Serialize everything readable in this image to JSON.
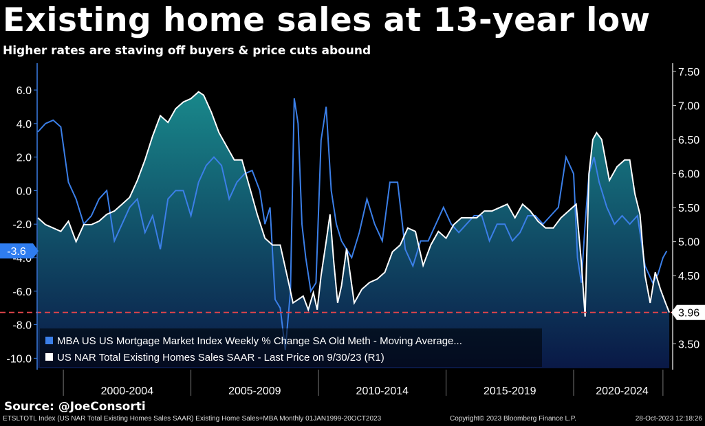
{
  "header": {
    "title": "Existing home sales at 13-year low",
    "subtitle": "Higher rates are staving off buyers & price cuts abound"
  },
  "footer": {
    "source": "Source:  @JoeConsorti",
    "index_line": "ETSLTOTL Index (US NAR Total Existing Homes Sales SAAR) Existing Home Sales+MBA  Monthly 01JAN1999-20OCT2023",
    "copyright": "Copyright© 2023 Bloomberg Finance L.P.",
    "date": "28-Oct-2023 12:18:26"
  },
  "colors": {
    "mba_line": "#3b7fe8",
    "sales_line": "#ffffff",
    "area_top": "#1a8f92",
    "area_bottom": "#0a1a4a",
    "reference_line": "#e0444a",
    "badge_left": "#2f7df0",
    "badge_right": "#ffffff"
  },
  "chart_data": {
    "type": "line",
    "x_range": [
      1999.0,
      2023.8
    ],
    "x_labels": [
      "2000-2004",
      "2005-2009",
      "2010-2014",
      "2015-2019",
      "2020-2024"
    ],
    "left_axis": {
      "ticks": [
        "6.0",
        "4.0",
        "2.0",
        "0.0",
        "-2.0",
        "-4.0",
        "-6.0",
        "-8.0",
        "-10.0"
      ],
      "tick_values": [
        6,
        4,
        2,
        0,
        -2,
        -4,
        -6,
        -8,
        -10
      ],
      "range": [
        -10.6,
        7.6
      ]
    },
    "right_axis": {
      "ticks": [
        "7.50",
        "7.00",
        "6.50",
        "6.00",
        "5.50",
        "5.00",
        "4.50",
        "4.00",
        "3.50"
      ],
      "tick_values": [
        7.5,
        7.0,
        6.5,
        6.0,
        5.5,
        5.0,
        4.5,
        4.0,
        3.5
      ],
      "range": [
        3.14,
        7.62
      ]
    },
    "last_values": {
      "left": "-3.6",
      "right": "3.96"
    },
    "reference_line_value": 3.96,
    "legend": [
      "MBA US US Mortgage Market Index Weekly % Change SA Old Meth - Moving Average...",
      "US NAR Total Existing Homes Sales SAAR - Last Price on 9/30/23 (R1)"
    ],
    "series": [
      {
        "name": "US NAR Total Existing Homes Sales SAAR",
        "axis": "right",
        "x": [
          1999.0,
          1999.3,
          1999.6,
          1999.9,
          2000.2,
          2000.5,
          2000.8,
          2001.1,
          2001.4,
          2001.7,
          2002.0,
          2002.3,
          2002.6,
          2002.9,
          2003.2,
          2003.5,
          2003.8,
          2004.1,
          2004.4,
          2004.7,
          2005.0,
          2005.3,
          2005.5,
          2005.8,
          2006.1,
          2006.4,
          2006.7,
          2007.0,
          2007.3,
          2007.6,
          2007.9,
          2008.2,
          2008.5,
          2008.8,
          2009.0,
          2009.2,
          2009.4,
          2009.6,
          2009.8,
          2009.95,
          2010.1,
          2010.3,
          2010.45,
          2010.6,
          2010.75,
          2010.9,
          2011.1,
          2011.4,
          2011.7,
          2012.0,
          2012.3,
          2012.6,
          2012.9,
          2013.2,
          2013.5,
          2013.8,
          2014.1,
          2014.4,
          2014.7,
          2015.0,
          2015.3,
          2015.6,
          2015.9,
          2016.2,
          2016.5,
          2016.8,
          2017.1,
          2017.4,
          2017.7,
          2018.0,
          2018.3,
          2018.6,
          2018.9,
          2019.2,
          2019.5,
          2019.8,
          2020.1,
          2020.3,
          2020.45,
          2020.6,
          2020.75,
          2020.9,
          2021.1,
          2021.4,
          2021.7,
          2022.0,
          2022.2,
          2022.4,
          2022.6,
          2022.8,
          2023.0,
          2023.2,
          2023.4,
          2023.6,
          2023.75
        ],
        "values": [
          5.35,
          5.25,
          5.2,
          5.15,
          5.3,
          5.0,
          5.25,
          5.25,
          5.3,
          5.4,
          5.45,
          5.55,
          5.65,
          5.9,
          6.2,
          6.55,
          6.85,
          6.75,
          6.95,
          7.05,
          7.1,
          7.2,
          7.15,
          6.9,
          6.6,
          6.4,
          6.2,
          6.2,
          5.8,
          5.4,
          5.05,
          4.95,
          4.95,
          4.45,
          4.1,
          4.15,
          4.2,
          4.0,
          4.25,
          4.0,
          4.5,
          5.0,
          5.4,
          4.7,
          4.1,
          4.35,
          4.9,
          4.1,
          4.3,
          4.4,
          4.45,
          4.55,
          4.85,
          4.95,
          5.2,
          5.15,
          4.65,
          4.95,
          5.15,
          5.05,
          5.25,
          5.35,
          5.35,
          5.35,
          5.45,
          5.45,
          5.5,
          5.55,
          5.35,
          5.55,
          5.45,
          5.3,
          5.2,
          5.2,
          5.35,
          5.45,
          5.55,
          4.7,
          3.9,
          6.0,
          6.5,
          6.6,
          6.5,
          5.9,
          6.1,
          6.2,
          6.2,
          5.7,
          5.4,
          4.5,
          4.1,
          4.55,
          4.3,
          4.1,
          3.96
        ]
      },
      {
        "name": "MBA US US Mortgage Market Index Weekly % Change SA Old Meth - Moving Average",
        "axis": "left",
        "x": [
          1999.0,
          1999.3,
          1999.6,
          1999.9,
          2000.2,
          2000.5,
          2000.8,
          2001.1,
          2001.4,
          2001.7,
          2002.0,
          2002.3,
          2002.6,
          2002.9,
          2003.2,
          2003.5,
          2003.8,
          2004.1,
          2004.4,
          2004.7,
          2005.0,
          2005.3,
          2005.6,
          2005.9,
          2006.2,
          2006.5,
          2006.8,
          2007.1,
          2007.4,
          2007.7,
          2007.9,
          2008.1,
          2008.3,
          2008.5,
          2008.7,
          2008.9,
          2009.05,
          2009.2,
          2009.35,
          2009.5,
          2009.7,
          2009.9,
          2010.1,
          2010.3,
          2010.5,
          2010.7,
          2010.9,
          2011.1,
          2011.3,
          2011.6,
          2011.9,
          2012.2,
          2012.5,
          2012.8,
          2013.1,
          2013.4,
          2013.7,
          2014.0,
          2014.3,
          2014.6,
          2014.9,
          2015.2,
          2015.5,
          2015.8,
          2016.1,
          2016.4,
          2016.7,
          2017.0,
          2017.3,
          2017.6,
          2017.9,
          2018.2,
          2018.5,
          2018.8,
          2019.1,
          2019.4,
          2019.7,
          2020.0,
          2020.15,
          2020.3,
          2020.45,
          2020.6,
          2020.8,
          2021.0,
          2021.3,
          2021.6,
          2021.9,
          2022.2,
          2022.5,
          2022.8,
          2023.1,
          2023.3,
          2023.5,
          2023.65
        ],
        "values": [
          3.5,
          4.0,
          4.2,
          3.8,
          0.5,
          -0.5,
          -2.0,
          -1.5,
          -0.5,
          0.0,
          -3.0,
          -2.0,
          -1.0,
          -0.5,
          -2.5,
          -1.5,
          -3.5,
          -0.5,
          0.0,
          0.0,
          -1.5,
          0.5,
          1.5,
          2.0,
          1.5,
          -0.5,
          0.5,
          1.0,
          1.2,
          0.0,
          -2.0,
          -1.0,
          -6.5,
          -7.0,
          -9.5,
          -6.0,
          5.5,
          4.0,
          -2.0,
          -4.0,
          -6.0,
          -5.5,
          3.0,
          5.0,
          0.0,
          -2.0,
          -3.0,
          -3.5,
          -4.0,
          -2.5,
          -0.5,
          -2.0,
          -3.0,
          0.5,
          0.5,
          -3.5,
          -4.5,
          -3.0,
          -3.0,
          -2.0,
          -1.0,
          -2.0,
          -2.5,
          -2.0,
          -1.5,
          -1.5,
          -3.0,
          -2.0,
          -2.0,
          -3.0,
          -2.5,
          -1.5,
          -1.5,
          -2.0,
          -1.5,
          -1.0,
          2.0,
          1.0,
          -4.0,
          -5.5,
          -2.0,
          1.0,
          2.0,
          0.5,
          -1.0,
          -2.0,
          -1.5,
          -2.0,
          -1.5,
          -4.5,
          -5.5,
          -5.0,
          -4.0,
          -3.6
        ]
      }
    ]
  }
}
